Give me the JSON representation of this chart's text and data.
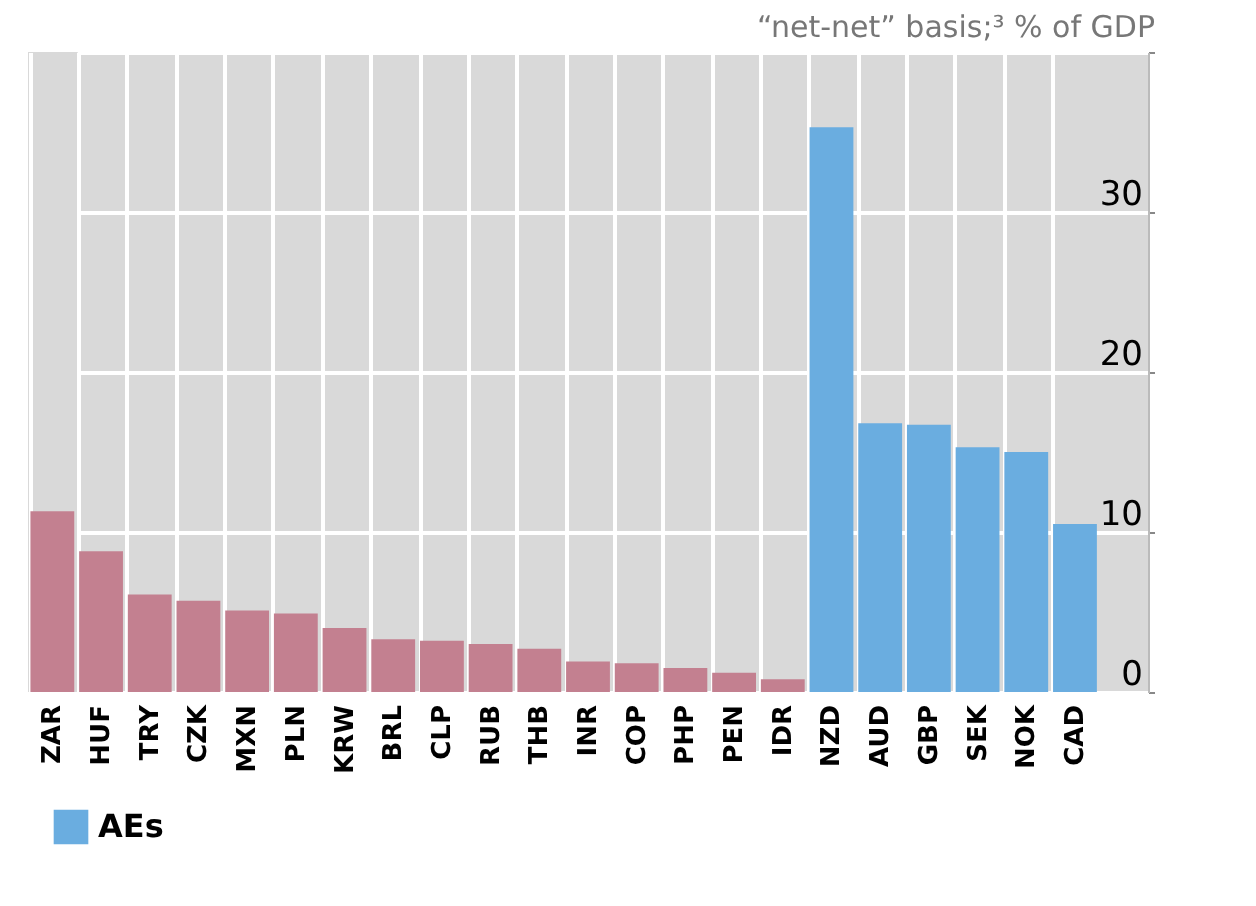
{
  "chart_data": {
    "type": "bar",
    "title": "“net-net” basis;³ % of GDP",
    "categories": [
      "ZAR",
      "HUF",
      "TRY",
      "CZK",
      "MXN",
      "PLN",
      "KRW",
      "BRL",
      "CLP",
      "RUB",
      "THB",
      "INR",
      "COP",
      "PHP",
      "PEN",
      "IDR",
      "NZD",
      "AUD",
      "GBP",
      "SEK",
      "NOK",
      "CAD"
    ],
    "series": [
      {
        "color": "#c38090",
        "values": [
          11.3,
          8.8,
          6.1,
          5.7,
          5.1,
          4.9,
          4.0,
          3.3,
          3.2,
          3.0,
          2.7,
          1.9,
          1.8,
          1.5,
          1.2,
          0.8,
          null,
          null,
          null,
          null,
          null,
          null
        ]
      },
      {
        "name": "AEs",
        "color": "#6aade0",
        "values": [
          null,
          null,
          null,
          null,
          null,
          null,
          null,
          null,
          null,
          null,
          null,
          null,
          null,
          null,
          null,
          null,
          35.3,
          16.8,
          16.7,
          15.3,
          15.0,
          10.5
        ]
      }
    ],
    "ylim": [
      0,
      40
    ],
    "yticks": [
      0,
      10,
      20,
      30,
      {
        "value": 40,
        "label": null
      }
    ],
    "grid": true,
    "legend": "bottom left"
  }
}
